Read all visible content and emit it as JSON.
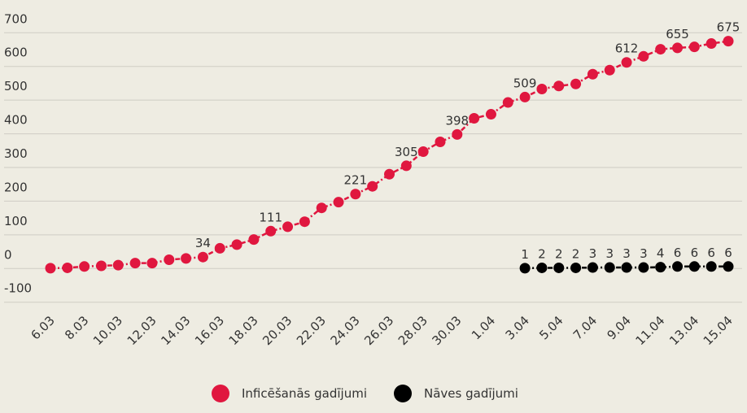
{
  "chart_data": {
    "type": "line",
    "categories": [
      "6.03",
      null,
      "8.03",
      null,
      "10.03",
      null,
      "12.03",
      null,
      "14.03",
      null,
      "16.03",
      null,
      "18.03",
      null,
      "20.03",
      null,
      "22.03",
      null,
      "24.03",
      null,
      "26.03",
      null,
      "28.03",
      null,
      "30.03",
      null,
      "1.04",
      null,
      "3.04",
      null,
      "5.04",
      null,
      "7.04",
      null,
      "9.04",
      null,
      "11.04",
      null,
      "13.04",
      null,
      "15.04"
    ],
    "series": [
      {
        "name": "Inficēšanās gadījumi",
        "color": "#e0173f",
        "values": [
          1,
          2,
          6,
          8,
          10,
          16,
          16,
          26,
          30,
          34,
          60,
          71,
          86,
          111,
          124,
          139,
          180,
          197,
          221,
          244,
          280,
          305,
          347,
          376,
          398,
          446,
          458,
          493,
          509,
          533,
          542,
          548,
          577,
          589,
          612,
          630,
          651,
          655,
          658,
          668,
          675
        ],
        "value_labels": [
          null,
          null,
          null,
          null,
          null,
          null,
          null,
          null,
          null,
          "34",
          null,
          null,
          null,
          "111",
          null,
          null,
          null,
          null,
          "221",
          null,
          null,
          "305",
          null,
          null,
          "398",
          null,
          null,
          null,
          "509",
          null,
          null,
          null,
          null,
          null,
          "612",
          null,
          null,
          "655",
          null,
          null,
          "675"
        ]
      },
      {
        "name": "Nāves gadījumi",
        "color": "#000000",
        "values": [
          null,
          null,
          null,
          null,
          null,
          null,
          null,
          null,
          null,
          null,
          null,
          null,
          null,
          null,
          null,
          null,
          null,
          null,
          null,
          null,
          null,
          null,
          null,
          null,
          null,
          null,
          null,
          null,
          1,
          2,
          2,
          2,
          3,
          3,
          3,
          3,
          4,
          6,
          6,
          6,
          6
        ],
        "value_labels": [
          null,
          null,
          null,
          null,
          null,
          null,
          null,
          null,
          null,
          null,
          null,
          null,
          null,
          null,
          null,
          null,
          null,
          null,
          null,
          null,
          null,
          null,
          null,
          null,
          null,
          null,
          null,
          null,
          "1",
          "2",
          "2",
          "2",
          "3",
          "3",
          "3",
          "3",
          "4",
          "6",
          "6",
          "6",
          "6"
        ]
      }
    ],
    "ylim": [
      -120,
      720
    ],
    "yticks": [
      -100,
      0,
      100,
      200,
      300,
      400,
      500,
      600,
      700
    ],
    "grid": true,
    "legend": "bottom"
  }
}
